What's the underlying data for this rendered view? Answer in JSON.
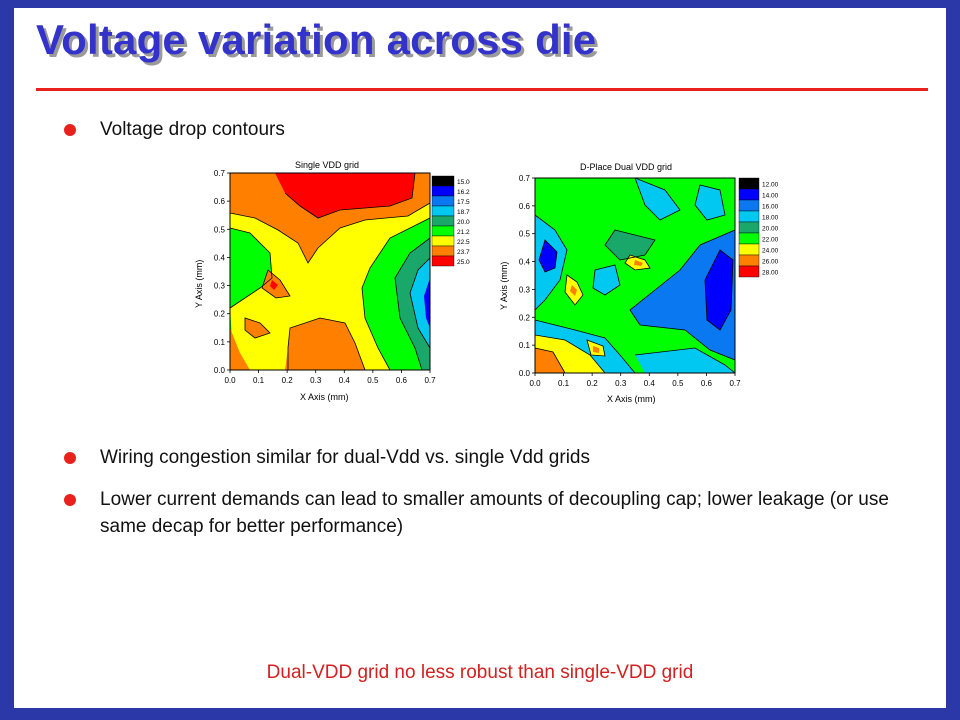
{
  "slide": {
    "title": "Voltage variation across die",
    "bullets": [
      "Voltage drop contours",
      "Wiring congestion similar for dual-Vdd vs. single Vdd grids",
      "Lower current demands can lead to smaller amounts of decoupling cap; lower leakage (or use same decap for better performance)"
    ],
    "footer": "Dual-VDD grid no less robust than single-VDD grid"
  },
  "chart_data": [
    {
      "type": "heatmap",
      "title": "Single VDD grid",
      "xlabel": "X Axis (mm)",
      "ylabel": "Y Axis (mm)",
      "xlim": [
        0,
        0.7
      ],
      "ylim": [
        0,
        0.7
      ],
      "x_ticks": [
        "0.0",
        "0.1",
        "0.2",
        "0.3",
        "0.4",
        "0.5",
        "0.6",
        "0.7"
      ],
      "y_ticks": [
        "0.0",
        "0.1",
        "0.2",
        "0.3",
        "0.4",
        "0.5",
        "0.6",
        "0.7"
      ],
      "legend": [
        "15.00",
        "16.25",
        "17.50",
        "18.75",
        "20.00",
        "21.25",
        "22.50",
        "23.75",
        "25.00"
      ],
      "colors": [
        "#000000",
        "#0000ff",
        "#0a78f0",
        "#00c8f0",
        "#19a86a",
        "#00ff00",
        "#ffff00",
        "#ff8000",
        "#ff0000"
      ]
    },
    {
      "type": "heatmap",
      "title": "D-Place Dual VDD grid",
      "xlabel": "X Axis (mm)",
      "ylabel": "Y Axis (mm)",
      "xlim": [
        0,
        0.7
      ],
      "ylim": [
        0,
        0.7
      ],
      "x_ticks": [
        "0.0",
        "0.1",
        "0.2",
        "0.3",
        "0.4",
        "0.5",
        "0.6",
        "0.7"
      ],
      "y_ticks": [
        "0.0",
        "0.1",
        "0.2",
        "0.3",
        "0.4",
        "0.5",
        "0.6",
        "0.7"
      ],
      "legend": [
        "12.00",
        "14.00",
        "16.00",
        "18.00",
        "20.00",
        "22.00",
        "24.00",
        "26.00",
        "28.00"
      ],
      "colors": [
        "#000000",
        "#0000ff",
        "#0a78f0",
        "#00c8f0",
        "#19a86a",
        "#00ff00",
        "#ffff00",
        "#ff8000",
        "#ff0000"
      ]
    }
  ]
}
